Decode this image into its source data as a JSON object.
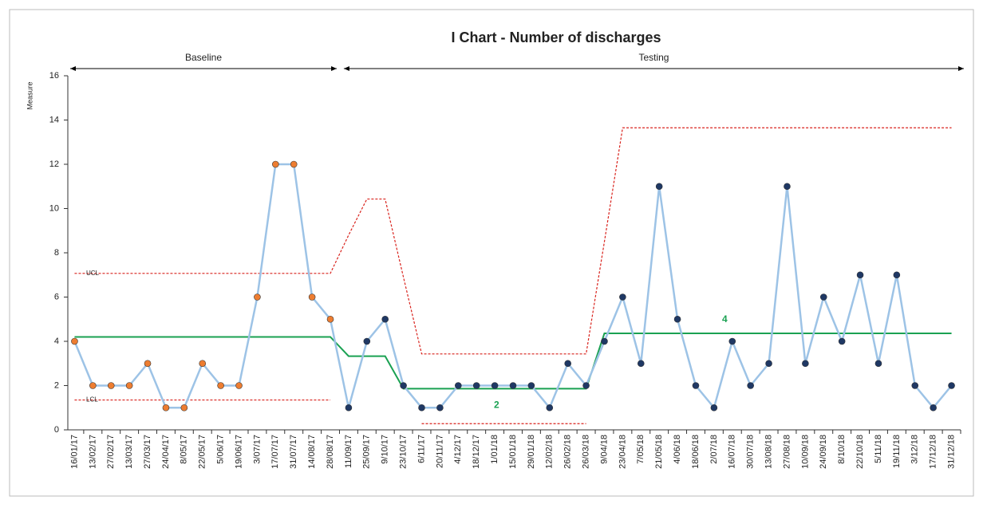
{
  "chart_data": {
    "type": "line",
    "title": "I Chart - Number of discharges",
    "y_label": "Measure",
    "categories": [
      "16/01/17",
      "13/02/17",
      "27/02/17",
      "13/03/17",
      "27/03/17",
      "24/04/17",
      "8/05/17",
      "22/05/17",
      "5/06/17",
      "19/06/17",
      "3/07/17",
      "17/07/17",
      "31/07/17",
      "14/08/17",
      "28/08/17",
      "11/09/17",
      "25/09/17",
      "9/10/17",
      "23/10/17",
      "6/11/17",
      "20/11/17",
      "4/12/17",
      "18/12/17",
      "1/01/18",
      "15/01/18",
      "29/01/18",
      "12/02/18",
      "26/02/18",
      "26/03/18",
      "9/04/18",
      "23/04/18",
      "7/05/18",
      "21/05/18",
      "4/06/18",
      "18/06/18",
      "2/07/18",
      "16/07/18",
      "30/07/18",
      "13/08/18",
      "27/08/18",
      "10/09/18",
      "24/09/18",
      "8/10/18",
      "22/10/18",
      "5/11/18",
      "19/11/18",
      "3/12/18",
      "17/12/18",
      "31/12/18"
    ],
    "values": [
      4,
      2,
      2,
      2,
      3,
      1,
      1,
      3,
      2,
      2,
      6,
      12,
      12,
      6,
      5,
      1,
      4,
      5,
      2,
      1,
      1,
      2,
      2,
      2,
      2,
      2,
      1,
      3,
      2,
      4,
      6,
      3,
      11,
      5,
      2,
      1,
      4,
      2,
      3,
      11,
      3,
      6,
      4,
      7,
      3,
      7,
      2,
      1,
      2
    ],
    "line_color": "#9dc3e6",
    "center_line": [
      4.2,
      4.2,
      4.2,
      4.2,
      4.2,
      4.2,
      4.2,
      4.2,
      4.2,
      4.2,
      4.2,
      4.2,
      4.2,
      4.2,
      4.2,
      3.33,
      3.33,
      3.33,
      1.86,
      1.86,
      1.86,
      1.86,
      1.86,
      1.86,
      1.86,
      1.86,
      1.86,
      1.86,
      1.86,
      4.36,
      4.36,
      4.36,
      4.36,
      4.36,
      4.36,
      4.36,
      4.36,
      4.36,
      4.36,
      4.36,
      4.36,
      4.36,
      4.36,
      4.36,
      4.36,
      4.36,
      4.36,
      4.36,
      4.36
    ],
    "center_color": "#1aa152",
    "ucl": [
      7.07,
      7.07,
      7.07,
      7.07,
      7.07,
      7.07,
      7.07,
      7.07,
      7.07,
      7.07,
      7.07,
      7.07,
      7.07,
      7.07,
      7.07,
      8.8,
      10.43,
      10.43,
      6.9,
      3.43,
      3.43,
      3.43,
      3.43,
      3.43,
      3.43,
      3.43,
      3.43,
      3.43,
      3.43,
      8.5,
      13.65,
      13.65,
      13.65,
      13.65,
      13.65,
      13.65,
      13.65,
      13.65,
      13.65,
      13.65,
      13.65,
      13.65,
      13.65,
      13.65,
      13.65,
      13.65,
      13.65,
      13.65,
      13.65
    ],
    "lcl": [
      1.35,
      1.35,
      1.35,
      1.35,
      1.35,
      1.35,
      1.35,
      1.35,
      1.35,
      1.35,
      1.35,
      1.35,
      1.35,
      1.35,
      1.35,
      null,
      null,
      null,
      null,
      0.28,
      0.28,
      0.28,
      0.28,
      0.28,
      0.28,
      0.28,
      0.28,
      0.28,
      0.28,
      null,
      null,
      null,
      null,
      null,
      null,
      null,
      null,
      null,
      null,
      null,
      null,
      null,
      null,
      null,
      null,
      null,
      null,
      null,
      null
    ],
    "limit_color": "#d9221c",
    "phases": [
      {
        "label": "Baseline",
        "from": "16/01/17",
        "to": "28/08/17",
        "marker_color": "#ed7d31"
      },
      {
        "label": "Testing",
        "from": "11/09/17",
        "to": "31/12/18",
        "marker_color": "#1f3864"
      }
    ],
    "annotations": [
      "UCL",
      "LCL",
      "4",
      "2"
    ],
    "ylim": [
      0,
      16
    ],
    "yticks": [
      0,
      2,
      4,
      6,
      8,
      10,
      12,
      14,
      16
    ]
  }
}
